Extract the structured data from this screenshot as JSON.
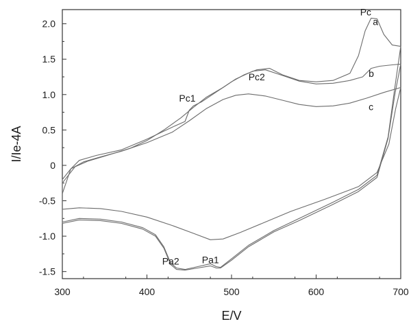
{
  "chart_data": {
    "type": "line",
    "title": "",
    "xlabel": "E/V",
    "ylabel": "I/Ie-4A",
    "xlim": [
      300,
      700
    ],
    "ylim": [
      -1.6,
      2.2
    ],
    "xticks": [
      300,
      400,
      500,
      600,
      700
    ],
    "xtick_labels": [
      "300",
      "400",
      "500",
      "600",
      "700"
    ],
    "yticks": [
      -1.5,
      -1.0,
      -0.5,
      0,
      0.5,
      1.0,
      1.5,
      2.0
    ],
    "ytick_labels": [
      "-1.5",
      "-1.0",
      "-0.5",
      "0",
      "0.5",
      "1.0",
      "1.5",
      "2.0"
    ],
    "grid": false,
    "line_color": "#6b6b6b",
    "series": [
      {
        "values": [
          [
            700,
            1.68
          ],
          [
            690,
            1.7
          ],
          [
            680,
            1.85
          ],
          [
            672,
            2.07
          ],
          [
            665,
            2.08
          ],
          [
            658,
            1.9
          ],
          [
            650,
            1.55
          ],
          [
            640,
            1.3
          ],
          [
            620,
            1.2
          ],
          [
            600,
            1.18
          ],
          [
            580,
            1.2
          ],
          [
            560,
            1.28
          ],
          [
            545,
            1.37
          ],
          [
            530,
            1.35
          ],
          [
            515,
            1.28
          ],
          [
            500,
            1.18
          ],
          [
            480,
            1.02
          ],
          [
            465,
            0.9
          ],
          [
            455,
            0.84
          ],
          [
            450,
            0.78
          ],
          [
            445,
            0.62
          ],
          [
            430,
            0.54
          ],
          [
            400,
            0.37
          ],
          [
            370,
            0.22
          ],
          [
            340,
            0.14
          ],
          [
            320,
            0.07
          ],
          [
            310,
            -0.05
          ],
          [
            300,
            -0.2
          ],
          [
            300,
            -0.8
          ],
          [
            320,
            -0.75
          ],
          [
            345,
            -0.76
          ],
          [
            370,
            -0.8
          ],
          [
            395,
            -0.88
          ],
          [
            410,
            -0.98
          ],
          [
            420,
            -1.15
          ],
          [
            428,
            -1.38
          ],
          [
            435,
            -1.45
          ],
          [
            445,
            -1.47
          ],
          [
            460,
            -1.43
          ],
          [
            475,
            -1.39
          ],
          [
            482,
            -1.43
          ],
          [
            487,
            -1.44
          ],
          [
            500,
            -1.32
          ],
          [
            520,
            -1.13
          ],
          [
            550,
            -0.92
          ],
          [
            580,
            -0.75
          ],
          [
            620,
            -0.52
          ],
          [
            650,
            -0.34
          ],
          [
            672,
            -0.14
          ],
          [
            685,
            0.4
          ],
          [
            693,
            1.1
          ],
          [
            700,
            1.68
          ]
        ]
      },
      {
        "values": [
          [
            700,
            1.43
          ],
          [
            690,
            1.42
          ],
          [
            675,
            1.4
          ],
          [
            665,
            1.37
          ],
          [
            655,
            1.25
          ],
          [
            640,
            1.2
          ],
          [
            620,
            1.16
          ],
          [
            600,
            1.15
          ],
          [
            580,
            1.19
          ],
          [
            560,
            1.27
          ],
          [
            540,
            1.35
          ],
          [
            525,
            1.33
          ],
          [
            505,
            1.22
          ],
          [
            490,
            1.1
          ],
          [
            470,
            0.96
          ],
          [
            455,
            0.82
          ],
          [
            440,
            0.67
          ],
          [
            420,
            0.5
          ],
          [
            400,
            0.35
          ],
          [
            380,
            0.24
          ],
          [
            350,
            0.13
          ],
          [
            330,
            0.06
          ],
          [
            315,
            -0.02
          ],
          [
            300,
            -0.25
          ],
          [
            300,
            -0.82
          ],
          [
            320,
            -0.77
          ],
          [
            345,
            -0.78
          ],
          [
            370,
            -0.82
          ],
          [
            395,
            -0.9
          ],
          [
            410,
            -1.0
          ],
          [
            420,
            -1.17
          ],
          [
            428,
            -1.4
          ],
          [
            435,
            -1.47
          ],
          [
            445,
            -1.48
          ],
          [
            460,
            -1.45
          ],
          [
            475,
            -1.42
          ],
          [
            482,
            -1.45
          ],
          [
            487,
            -1.45
          ],
          [
            500,
            -1.34
          ],
          [
            520,
            -1.15
          ],
          [
            550,
            -0.94
          ],
          [
            580,
            -0.78
          ],
          [
            620,
            -0.55
          ],
          [
            650,
            -0.37
          ],
          [
            672,
            -0.17
          ],
          [
            685,
            0.38
          ],
          [
            693,
            1.0
          ],
          [
            700,
            1.43
          ]
        ]
      },
      {
        "values": [
          [
            700,
            1.1
          ],
          [
            680,
            1.03
          ],
          [
            660,
            0.95
          ],
          [
            640,
            0.88
          ],
          [
            620,
            0.84
          ],
          [
            600,
            0.83
          ],
          [
            580,
            0.86
          ],
          [
            560,
            0.92
          ],
          [
            540,
            0.98
          ],
          [
            520,
            1.01
          ],
          [
            505,
            0.99
          ],
          [
            490,
            0.93
          ],
          [
            470,
            0.8
          ],
          [
            450,
            0.63
          ],
          [
            430,
            0.47
          ],
          [
            400,
            0.32
          ],
          [
            370,
            0.2
          ],
          [
            345,
            0.12
          ],
          [
            325,
            0.05
          ],
          [
            310,
            -0.05
          ],
          [
            300,
            -0.4
          ],
          [
            300,
            -0.62
          ],
          [
            320,
            -0.6
          ],
          [
            345,
            -0.61
          ],
          [
            370,
            -0.65
          ],
          [
            400,
            -0.73
          ],
          [
            430,
            -0.85
          ],
          [
            455,
            -0.96
          ],
          [
            475,
            -1.05
          ],
          [
            490,
            -1.04
          ],
          [
            510,
            -0.95
          ],
          [
            540,
            -0.8
          ],
          [
            570,
            -0.65
          ],
          [
            610,
            -0.48
          ],
          [
            650,
            -0.3
          ],
          [
            672,
            -0.1
          ],
          [
            686,
            0.3
          ],
          [
            694,
            0.8
          ],
          [
            700,
            1.1
          ]
        ]
      }
    ],
    "annotations": [
      {
        "text": "Pc",
        "x": 652,
        "y": 2.12
      },
      {
        "text": "a",
        "x": 667,
        "y": 1.98
      },
      {
        "text": "b",
        "x": 662,
        "y": 1.25
      },
      {
        "text": "c",
        "x": 662,
        "y": 0.78
      },
      {
        "text": "Pc1",
        "x": 438,
        "y": 0.9
      },
      {
        "text": "Pc2",
        "x": 520,
        "y": 1.2
      },
      {
        "text": "Pa1",
        "x": 465,
        "y": -1.38
      },
      {
        "text": "Pa2",
        "x": 418,
        "y": -1.4
      }
    ]
  }
}
